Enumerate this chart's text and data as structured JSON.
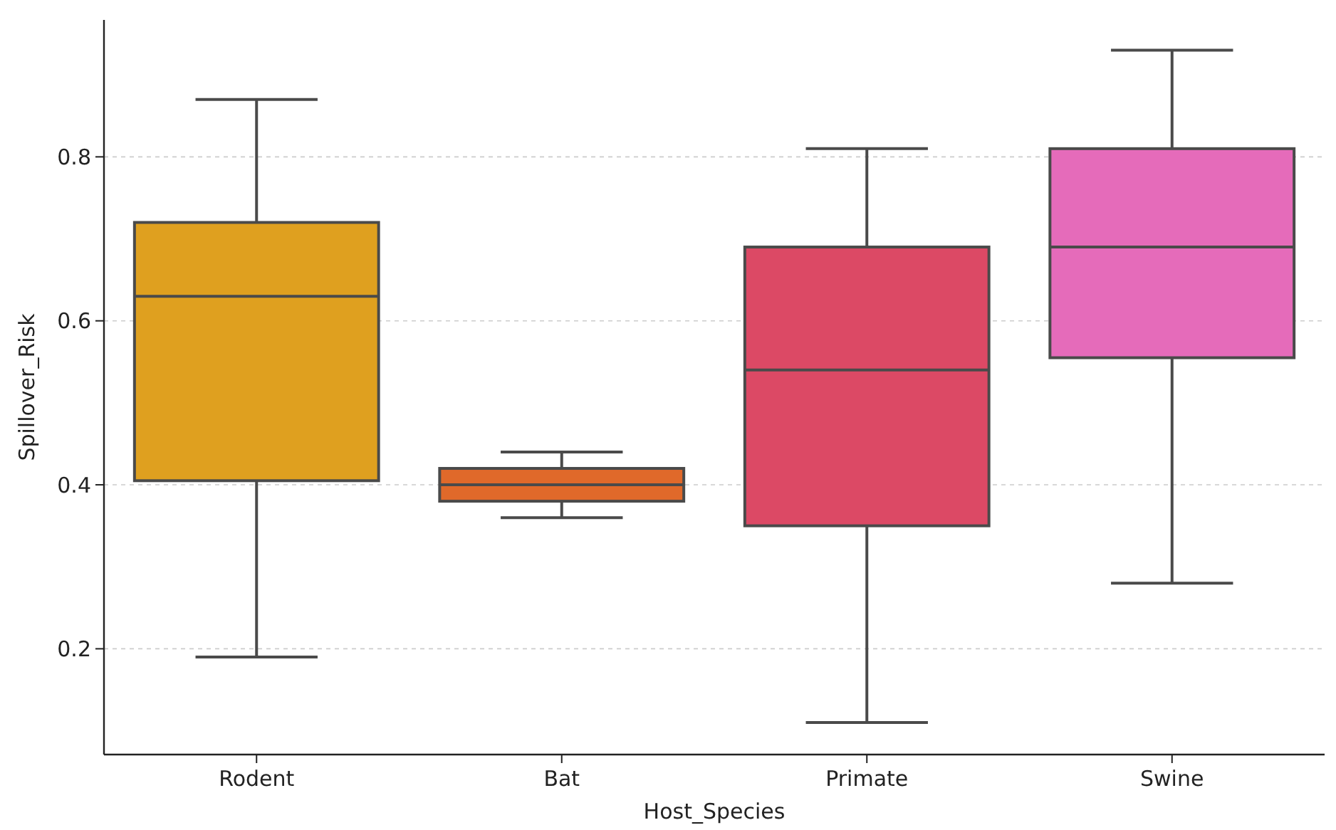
{
  "chart_data": {
    "type": "box",
    "xlabel": "Host_Species",
    "ylabel": "Spillover_Risk",
    "categories": [
      "Rodent",
      "Bat",
      "Primate",
      "Swine"
    ],
    "colors": [
      "#dfa01f",
      "#e0692a",
      "#dc4965",
      "#e56bba"
    ],
    "boxes": [
      {
        "low": 0.19,
        "q1": 0.405,
        "median": 0.63,
        "q3": 0.72,
        "high": 0.87
      },
      {
        "low": 0.36,
        "q1": 0.38,
        "median": 0.4,
        "q3": 0.42,
        "high": 0.44
      },
      {
        "low": 0.11,
        "q1": 0.35,
        "median": 0.54,
        "q3": 0.69,
        "high": 0.81
      },
      {
        "low": 0.28,
        "q1": 0.555,
        "median": 0.69,
        "q3": 0.81,
        "high": 0.93
      }
    ],
    "ylim": [
      0.071,
      0.967
    ],
    "yticks": [
      0.2,
      0.4,
      0.6,
      0.8
    ],
    "grid": "y"
  }
}
